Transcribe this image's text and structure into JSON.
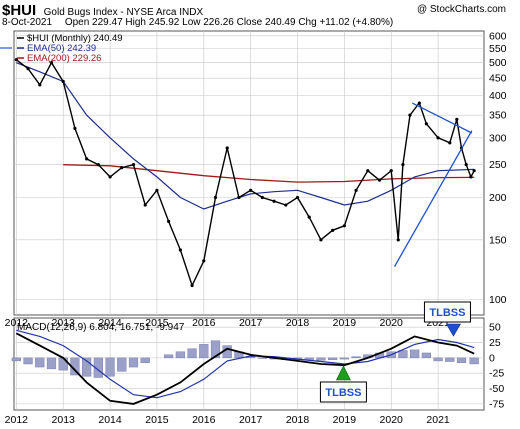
{
  "header": {
    "symbol": "$HUI",
    "name": "Gold Bugs Index - NYSE Arca  INDX",
    "watermark": "@ StockCharts.com",
    "date": "8-Oct-2021",
    "quote": "Open 229.47  High 245.92  Low 226.26  Close 240.49  Chg +11.02 (+4.80%)",
    "chg_direction": "up"
  },
  "colors": {
    "price": "#000000",
    "ema50": "#1d2e8c",
    "ema200": "#a01919",
    "macd": "#000000",
    "signal": "#2233aa",
    "histogram": "#9aa0c8",
    "annotation": "#1f4fd1",
    "grid": "#c8c8c8",
    "up_arrow": "#1e9e1e"
  },
  "chart_data": [
    {
      "type": "line",
      "title": "$HUI (Monthly) 240.49",
      "scale": "log",
      "ylim": [
        90,
        620
      ],
      "ticks_y": [
        100,
        150,
        200,
        250,
        300,
        350,
        400,
        450,
        500,
        550,
        600
      ],
      "x_ticks": [
        "2012",
        "2013",
        "2014",
        "2015",
        "2016",
        "2017",
        "2018",
        "2019",
        "2020",
        "2021"
      ],
      "xlim": [
        2011.95,
        2021.98
      ],
      "grid": true,
      "legend": [
        "$HUI (Monthly) 240.49",
        "EMA(50) 242.39",
        "EMA(200) 229.26"
      ],
      "series": [
        {
          "name": "$HUI (Monthly)",
          "x": [
            2012.0,
            2012.25,
            2012.5,
            2012.75,
            2013.0,
            2013.25,
            2013.5,
            2013.75,
            2014.0,
            2014.25,
            2014.5,
            2014.75,
            2015.0,
            2015.25,
            2015.5,
            2015.75,
            2016.0,
            2016.25,
            2016.5,
            2016.75,
            2017.0,
            2017.25,
            2017.5,
            2017.75,
            2018.0,
            2018.25,
            2018.5,
            2018.75,
            2019.0,
            2019.25,
            2019.5,
            2019.75,
            2020.0,
            2020.15,
            2020.25,
            2020.4,
            2020.6,
            2020.75,
            2021.0,
            2021.25,
            2021.4,
            2021.5,
            2021.6,
            2021.7,
            2021.77
          ],
          "values": [
            510,
            480,
            430,
            500,
            440,
            320,
            260,
            250,
            230,
            245,
            250,
            190,
            210,
            170,
            140,
            110,
            130,
            200,
            280,
            200,
            210,
            200,
            195,
            190,
            200,
            175,
            150,
            160,
            165,
            210,
            240,
            225,
            240,
            150,
            250,
            350,
            380,
            330,
            300,
            290,
            340,
            280,
            250,
            230,
            240
          ]
        },
        {
          "name": "EMA(50)",
          "x": [
            2012.0,
            2012.5,
            2013.0,
            2013.5,
            2014.0,
            2014.5,
            2015.0,
            2015.5,
            2016.0,
            2016.5,
            2017.0,
            2017.5,
            2018.0,
            2018.5,
            2019.0,
            2019.5,
            2020.0,
            2020.5,
            2021.0,
            2021.77
          ],
          "values": [
            500,
            470,
            440,
            350,
            300,
            260,
            230,
            200,
            185,
            195,
            205,
            208,
            210,
            200,
            190,
            195,
            210,
            230,
            240,
            242
          ]
        },
        {
          "name": "EMA(200)",
          "x": [
            2013.0,
            2014.0,
            2015.0,
            2016.0,
            2017.0,
            2018.0,
            2019.0,
            2020.0,
            2021.0,
            2021.77
          ],
          "values": [
            250,
            248,
            240,
            232,
            226,
            222,
            223,
            227,
            229,
            229.26
          ]
        }
      ],
      "annotations": [
        "TLBSS"
      ]
    },
    {
      "type": "line",
      "title": "MACD(12,26,9) 6.804, 16.751, -9.947",
      "ylim": [
        -85,
        65
      ],
      "ticks_y": [
        -75,
        -50,
        -25,
        0,
        25,
        50
      ],
      "x_ticks": [
        "2012",
        "2013",
        "2014",
        "2015",
        "2016",
        "2017",
        "2018",
        "2019",
        "2020",
        "2021"
      ],
      "xlim": [
        2011.95,
        2021.98
      ],
      "grid": true,
      "series": [
        {
          "name": "MACD",
          "x": [
            2012.0,
            2012.5,
            2013.0,
            2013.5,
            2014.0,
            2014.5,
            2015.0,
            2015.5,
            2016.0,
            2016.5,
            2017.0,
            2017.5,
            2018.0,
            2018.5,
            2019.0,
            2019.5,
            2020.0,
            2020.5,
            2021.0,
            2021.4,
            2021.77
          ],
          "values": [
            40,
            20,
            0,
            -40,
            -70,
            -75,
            -60,
            -40,
            -10,
            15,
            5,
            0,
            -5,
            -10,
            -12,
            0,
            15,
            35,
            25,
            20,
            6.804
          ]
        },
        {
          "name": "Signal",
          "x": [
            2012.0,
            2012.5,
            2013.0,
            2013.5,
            2014.0,
            2014.5,
            2015.0,
            2015.5,
            2016.0,
            2016.5,
            2017.0,
            2017.5,
            2018.0,
            2018.5,
            2019.0,
            2019.5,
            2020.0,
            2020.5,
            2021.0,
            2021.4,
            2021.77
          ],
          "values": [
            45,
            35,
            20,
            -5,
            -35,
            -60,
            -65,
            -55,
            -35,
            -5,
            3,
            2,
            -2,
            -6,
            -10,
            -6,
            5,
            22,
            30,
            25,
            16.751
          ]
        },
        {
          "name": "Histogram",
          "x": [
            2012.0,
            2012.25,
            2012.5,
            2012.75,
            2013.0,
            2013.25,
            2013.5,
            2013.75,
            2014.0,
            2014.25,
            2014.5,
            2014.75,
            2015.0,
            2015.25,
            2015.5,
            2015.75,
            2016.0,
            2016.25,
            2016.5,
            2016.75,
            2017.0,
            2017.25,
            2017.5,
            2017.75,
            2018.0,
            2018.25,
            2018.5,
            2018.75,
            2019.0,
            2019.25,
            2019.5,
            2019.75,
            2020.0,
            2020.25,
            2020.5,
            2020.75,
            2021.0,
            2021.25,
            2021.5,
            2021.77
          ],
          "values": [
            -5,
            -10,
            -15,
            -18,
            -20,
            -28,
            -30,
            -32,
            -30,
            -22,
            -15,
            -8,
            0,
            5,
            10,
            15,
            22,
            28,
            20,
            10,
            2,
            -1,
            -2,
            -3,
            -3,
            -4,
            -4,
            -3,
            -2,
            2,
            5,
            8,
            10,
            12,
            13,
            8,
            -5,
            -6,
            -8,
            -9.947
          ]
        }
      ],
      "annotations": [
        "TLBSS"
      ]
    }
  ]
}
